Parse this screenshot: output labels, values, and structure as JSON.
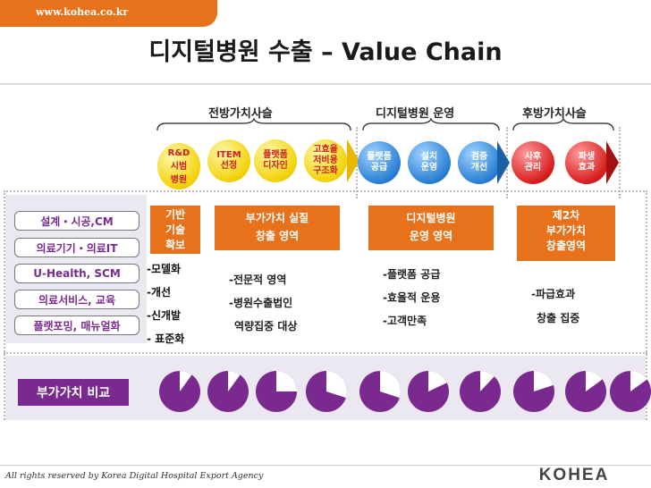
{
  "header": {
    "url": "www.kohea.co.kr",
    "title": "디지털병원 수출 – Value Chain"
  },
  "phases": {
    "front": "전방가치사슬",
    "operation": "디지털병원 운영",
    "rear": "후방가치사슬"
  },
  "chain": [
    {
      "line1": "R&D",
      "line2": "시범",
      "line3": "병원",
      "color": "yellow"
    },
    {
      "line1": "ITEM",
      "line2": "선정",
      "color": "yellow"
    },
    {
      "line1": "플랫폼",
      "line2": "디자인",
      "color": "yellow"
    },
    {
      "line1": "고효율",
      "line2": "저비용",
      "line3": "구조화",
      "color": "yellow"
    },
    {
      "line1": "플랫폼",
      "line2": "공급",
      "color": "blue"
    },
    {
      "line1": "설치",
      "line2": "운영",
      "color": "blue"
    },
    {
      "line1": "검증",
      "line2": "개선",
      "color": "blue"
    },
    {
      "line1": "사후",
      "line2": "관리",
      "color": "red"
    },
    {
      "line1": "파생",
      "line2": "효과",
      "color": "red"
    }
  ],
  "left_items": [
    "설계・시공,CM",
    "의료기기・의료IT",
    "U-Health, SCM",
    "의료서비스, 교육",
    "플랫포밍, 매뉴얼화"
  ],
  "infra": {
    "box_line1": "기반",
    "box_line2": "기술",
    "box_line3": "확보",
    "items": [
      "-모델화",
      "-개선",
      "-신개발",
      "- 표준화"
    ]
  },
  "value_boxes": [
    {
      "line1": "부가가치 실질",
      "line2": "창출 영역"
    },
    {
      "line1": "디지털병원",
      "line2": "운영 영역"
    },
    {
      "line1": "제2차",
      "line2": "부가가치",
      "line3": "창출영역"
    }
  ],
  "details": {
    "front": [
      "-전문적 영역",
      "-병원수출법인",
      "역량집중 대상"
    ],
    "operation": [
      "-플랫폼 공급",
      "-효율적 운용",
      "-고객만족"
    ],
    "rear": [
      "-파급효과",
      "창출 집중"
    ]
  },
  "comparison": {
    "label": "부가가치 비교",
    "fractions": [
      0.1,
      0.1,
      0.25,
      0.3,
      0.3,
      0.18,
      0.12,
      0.2,
      0.15,
      0.15
    ]
  },
  "footer": {
    "copyright": "All rights reserved by Korea Digital Hospital Export Agency",
    "logo_text": "KOHEA"
  },
  "colors": {
    "accent_orange": "#e8721c",
    "purple": "#7a2a8f",
    "yellow": "#f2d20a",
    "blue": "#2a7fd4",
    "red": "#d81e1e"
  }
}
